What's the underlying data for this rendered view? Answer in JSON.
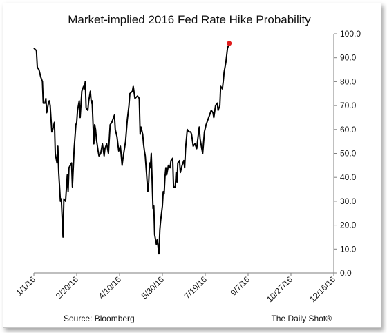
{
  "chart_data": {
    "type": "line",
    "title": "Market-implied 2016 Fed Rate Hike Probability",
    "xlabel": "",
    "ylabel": "",
    "ylim": [
      0,
      100
    ],
    "y_ticks": [
      "0.0",
      "10.0",
      "20.0",
      "30.0",
      "40.0",
      "50.0",
      "60.0",
      "70.0",
      "80.0",
      "90.0",
      "100.0"
    ],
    "x_range": [
      "2016-01-01",
      "2016-12-16"
    ],
    "x_ticks": [
      "1/1/16",
      "2/20/16",
      "4/10/16",
      "5/30/16",
      "7/19/16",
      "9/7/16",
      "10/27/16",
      "12/16/16"
    ],
    "grid": false,
    "series": [
      {
        "color": "#000000",
        "points": [
          [
            "2016-01-01",
            94
          ],
          [
            "2016-01-04",
            93
          ],
          [
            "2016-01-05",
            86
          ],
          [
            "2016-01-07",
            85
          ],
          [
            "2016-01-09",
            82
          ],
          [
            "2016-01-11",
            80
          ],
          [
            "2016-01-12",
            71
          ],
          [
            "2016-01-14",
            71
          ],
          [
            "2016-01-15",
            73
          ],
          [
            "2016-01-16",
            67
          ],
          [
            "2016-01-18",
            71
          ],
          [
            "2016-01-19",
            72
          ],
          [
            "2016-01-20",
            70
          ],
          [
            "2016-01-22",
            59
          ],
          [
            "2016-01-23",
            60
          ],
          [
            "2016-01-25",
            63
          ],
          [
            "2016-01-26",
            50
          ],
          [
            "2016-01-27",
            48
          ],
          [
            "2016-01-28",
            46
          ],
          [
            "2016-01-29",
            53
          ],
          [
            "2016-01-30",
            42
          ],
          [
            "2016-02-01",
            30
          ],
          [
            "2016-02-02",
            31
          ],
          [
            "2016-02-04",
            15
          ],
          [
            "2016-02-05",
            31
          ],
          [
            "2016-02-07",
            30
          ],
          [
            "2016-02-09",
            41
          ],
          [
            "2016-02-10",
            34
          ],
          [
            "2016-02-11",
            44
          ],
          [
            "2016-02-14",
            46
          ],
          [
            "2016-02-15",
            36
          ],
          [
            "2016-02-17",
            52
          ],
          [
            "2016-02-19",
            62
          ],
          [
            "2016-02-20",
            63
          ],
          [
            "2016-02-21",
            68
          ],
          [
            "2016-02-23",
            72
          ],
          [
            "2016-02-24",
            65
          ],
          [
            "2016-02-26",
            76
          ],
          [
            "2016-02-28",
            78
          ],
          [
            "2016-02-29",
            77
          ],
          [
            "2016-03-01",
            80
          ],
          [
            "2016-03-02",
            69
          ],
          [
            "2016-03-04",
            68
          ],
          [
            "2016-03-05",
            72
          ],
          [
            "2016-03-07",
            76
          ],
          [
            "2016-03-08",
            71
          ],
          [
            "2016-03-09",
            72
          ],
          [
            "2016-03-11",
            54
          ],
          [
            "2016-03-12",
            62
          ],
          [
            "2016-03-13",
            60
          ],
          [
            "2016-03-14",
            56
          ],
          [
            "2016-03-16",
            51
          ],
          [
            "2016-03-17",
            49
          ],
          [
            "2016-03-19",
            50
          ],
          [
            "2016-03-21",
            54
          ],
          [
            "2016-03-23",
            49
          ],
          [
            "2016-03-24",
            52
          ],
          [
            "2016-03-26",
            54
          ],
          [
            "2016-03-28",
            50
          ],
          [
            "2016-03-30",
            62
          ],
          [
            "2016-04-01",
            63
          ],
          [
            "2016-04-04",
            66
          ],
          [
            "2016-04-05",
            60
          ],
          [
            "2016-04-07",
            57
          ],
          [
            "2016-04-09",
            51
          ],
          [
            "2016-04-11",
            53
          ],
          [
            "2016-04-12",
            49
          ],
          [
            "2016-04-13",
            45
          ],
          [
            "2016-04-14",
            48
          ],
          [
            "2016-04-17",
            55
          ],
          [
            "2016-04-19",
            64
          ],
          [
            "2016-04-21",
            70
          ],
          [
            "2016-04-22",
            75
          ],
          [
            "2016-04-25",
            76
          ],
          [
            "2016-04-26",
            78
          ],
          [
            "2016-04-28",
            73
          ],
          [
            "2016-05-01",
            74
          ],
          [
            "2016-05-03",
            73
          ],
          [
            "2016-05-04",
            58
          ],
          [
            "2016-05-05",
            61
          ],
          [
            "2016-05-07",
            58
          ],
          [
            "2016-05-08",
            54
          ],
          [
            "2016-05-09",
            51
          ],
          [
            "2016-05-10",
            49
          ],
          [
            "2016-05-13",
            34
          ],
          [
            "2016-05-14",
            38
          ],
          [
            "2016-05-15",
            46
          ],
          [
            "2016-05-16",
            44
          ],
          [
            "2016-05-17",
            50
          ],
          [
            "2016-05-19",
            27
          ],
          [
            "2016-05-20",
            28
          ],
          [
            "2016-05-21",
            16
          ],
          [
            "2016-05-22",
            14
          ],
          [
            "2016-05-23",
            12
          ],
          [
            "2016-05-24",
            14
          ],
          [
            "2016-05-26",
            8
          ],
          [
            "2016-05-27",
            18
          ],
          [
            "2016-05-28",
            22
          ],
          [
            "2016-05-30",
            28
          ],
          [
            "2016-05-31",
            34
          ],
          [
            "2016-06-01",
            33
          ],
          [
            "2016-06-02",
            40
          ],
          [
            "2016-06-03",
            44
          ],
          [
            "2016-06-04",
            41
          ],
          [
            "2016-06-06",
            45
          ],
          [
            "2016-06-08",
            44
          ],
          [
            "2016-06-09",
            47
          ],
          [
            "2016-06-11",
            48
          ],
          [
            "2016-06-12",
            36
          ],
          [
            "2016-06-14",
            36
          ],
          [
            "2016-06-15",
            42
          ],
          [
            "2016-06-16",
            38
          ],
          [
            "2016-06-17",
            46
          ],
          [
            "2016-06-19",
            47
          ],
          [
            "2016-06-20",
            42
          ],
          [
            "2016-06-22",
            45
          ],
          [
            "2016-06-24",
            47
          ],
          [
            "2016-06-25",
            44
          ],
          [
            "2016-06-26",
            52
          ],
          [
            "2016-06-28",
            60
          ],
          [
            "2016-06-30",
            59
          ],
          [
            "2016-07-02",
            59
          ],
          [
            "2016-07-03",
            58
          ],
          [
            "2016-07-05",
            53
          ],
          [
            "2016-07-07",
            54
          ],
          [
            "2016-07-09",
            52
          ],
          [
            "2016-07-10",
            55
          ],
          [
            "2016-07-12",
            61
          ],
          [
            "2016-07-13",
            56
          ],
          [
            "2016-07-15",
            52
          ],
          [
            "2016-07-16",
            50
          ],
          [
            "2016-07-18",
            59
          ],
          [
            "2016-07-20",
            62
          ],
          [
            "2016-07-22",
            64
          ],
          [
            "2016-07-24",
            66
          ],
          [
            "2016-07-26",
            68
          ],
          [
            "2016-07-28",
            67
          ],
          [
            "2016-07-29",
            65
          ],
          [
            "2016-07-31",
            70
          ],
          [
            "2016-08-02",
            71
          ],
          [
            "2016-08-03",
            68
          ],
          [
            "2016-08-05",
            70
          ],
          [
            "2016-08-06",
            78
          ],
          [
            "2016-08-08",
            77
          ],
          [
            "2016-08-09",
            80
          ],
          [
            "2016-08-10",
            84
          ],
          [
            "2016-08-12",
            88
          ],
          [
            "2016-08-13",
            91
          ],
          [
            "2016-08-14",
            94
          ],
          [
            "2016-08-15",
            95
          ],
          [
            "2016-08-16",
            96
          ]
        ]
      }
    ],
    "highlight_point": {
      "date": "2016-08-16",
      "value": 96,
      "color": "#e01b1b"
    },
    "source": "Source: Bloomberg",
    "credit": "The Daily Shot®"
  }
}
